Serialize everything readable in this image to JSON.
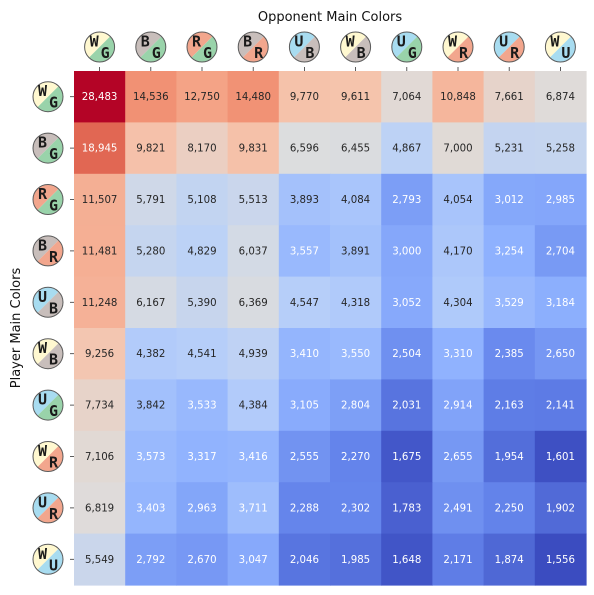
{
  "chart_data": {
    "type": "heatmap",
    "xlabel": "Opponent Main Colors",
    "ylabel": "Player Main Colors",
    "colormap": "coolwarm",
    "vmin": 1556,
    "vmax": 28483,
    "column_labels": [
      "WG",
      "BG",
      "RG",
      "BR",
      "UB",
      "WB",
      "UG",
      "WR",
      "UR",
      "WU"
    ],
    "row_labels": [
      "WG",
      "BG",
      "RG",
      "BR",
      "UB",
      "WB",
      "UG",
      "WR",
      "UR",
      "WU"
    ],
    "color_hex": {
      "W": "#fff8d0",
      "U": "#a8dcf0",
      "B": "#c8bebb",
      "R": "#f2a68d",
      "G": "#99d3aa"
    },
    "values": [
      [
        28483,
        14536,
        12750,
        14480,
        9770,
        9611,
        7064,
        10848,
        7661,
        6874
      ],
      [
        18945,
        9821,
        8170,
        9831,
        6596,
        6455,
        4867,
        7000,
        5231,
        5258
      ],
      [
        11507,
        5791,
        5108,
        5513,
        3893,
        4084,
        2793,
        4054,
        3012,
        2985
      ],
      [
        11481,
        5280,
        4829,
        6037,
        3557,
        3891,
        3000,
        4170,
        3254,
        2704
      ],
      [
        11248,
        6167,
        5390,
        6369,
        4547,
        4318,
        3052,
        4304,
        3529,
        3184
      ],
      [
        9256,
        4382,
        4541,
        4939,
        3410,
        3550,
        2504,
        3310,
        2385,
        2650
      ],
      [
        7734,
        3842,
        3533,
        4384,
        3105,
        2804,
        2031,
        2914,
        2163,
        2141
      ],
      [
        7106,
        3573,
        3317,
        3416,
        2555,
        2270,
        1675,
        2655,
        1954,
        1601
      ],
      [
        6819,
        3403,
        2963,
        3711,
        2288,
        2302,
        1783,
        2491,
        2250,
        1902
      ],
      [
        5549,
        2792,
        2670,
        3047,
        2046,
        1985,
        1648,
        2171,
        1874,
        1556
      ]
    ]
  }
}
